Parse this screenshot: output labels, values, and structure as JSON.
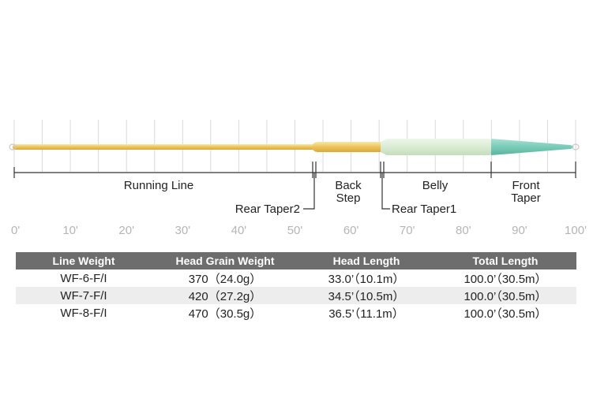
{
  "ruler": {
    "ticks": [
      {
        "label": "0'",
        "value": 0
      },
      {
        "label": "10'",
        "value": 10
      },
      {
        "label": "20'",
        "value": 20
      },
      {
        "label": "30'",
        "value": 30
      },
      {
        "label": "40'",
        "value": 40
      },
      {
        "label": "50'",
        "value": 50
      },
      {
        "label": "60'",
        "value": 60
      },
      {
        "label": "70'",
        "value": 70
      },
      {
        "label": "80'",
        "value": 80
      },
      {
        "label": "90'",
        "value": 90
      },
      {
        "label": "100'",
        "value": 100
      }
    ],
    "max_value": 100
  },
  "segments": {
    "running_line": "Running Line",
    "rear_taper2": "Rear Taper2",
    "back_step_line1": "Back",
    "back_step_line2": "Step",
    "rear_taper1": "Rear Taper1",
    "belly": "Belly",
    "front_taper_line1": "Front",
    "front_taper_line2": "Taper"
  },
  "colors": {
    "running_line": "#ecc35a",
    "back_step": "#ecc35a",
    "belly": "#d9ecd2",
    "front_taper": "#78cbb8",
    "header_bg": "#6d6d6d",
    "row_alt": "#ededed"
  },
  "table": {
    "headers": [
      "Line Weight",
      "Head Grain Weight",
      "Head Length",
      "Total Length"
    ],
    "rows": [
      [
        "WF-6-F/I",
        "370（24.0g）",
        "33.0’（10.1m）",
        "100.0’（30.5m）"
      ],
      [
        "WF-7-F/I",
        "420（27.2g）",
        "34.5’（10.5m）",
        "100.0’（30.5m）"
      ],
      [
        "WF-8-F/I",
        "470（30.5g）",
        "36.5’（11.1m）",
        "100.0’（30.5m）"
      ]
    ]
  }
}
